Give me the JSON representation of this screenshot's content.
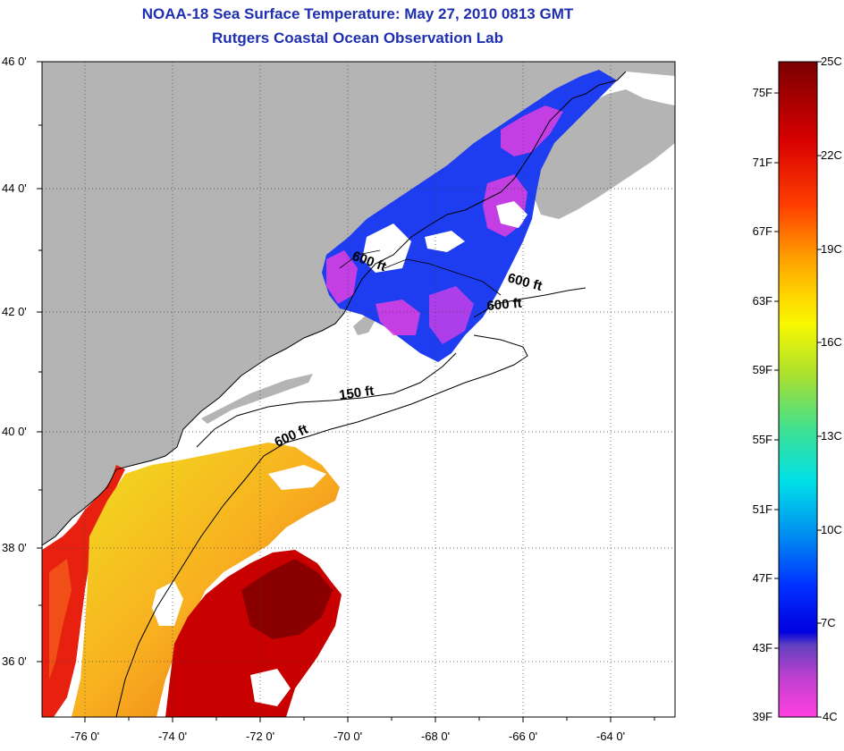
{
  "title": "NOAA-18 Sea Surface Temperature:  May 27, 2010 0813 GMT",
  "subtitle": "Rutgers Coastal Ocean Observation Lab",
  "map": {
    "lat_labels": [
      "46 0'",
      "44 0'",
      "42 0'",
      "40 0'",
      "38 0'",
      "36 0'"
    ],
    "lon_labels": [
      "-76 0'",
      "-74 0'",
      "-72 0'",
      "-70 0'",
      "-68 0'",
      "-66 0'",
      "-64 0'"
    ],
    "contour_labels": [
      "600 ft",
      "600 ft",
      "600 ft",
      "150 ft",
      "600 ft"
    ]
  },
  "colorbar": {
    "fahrenheit_labels": [
      "75F",
      "71F",
      "67F",
      "63F",
      "59F",
      "55F",
      "51F",
      "47F",
      "43F",
      "39F"
    ],
    "celsius_labels": [
      "25C",
      "22C",
      "19C",
      "16C",
      "13C",
      "10C",
      "7C",
      "4C"
    ]
  },
  "colors": {
    "land": "#b4b4b4",
    "title": "#1f2fb0"
  }
}
